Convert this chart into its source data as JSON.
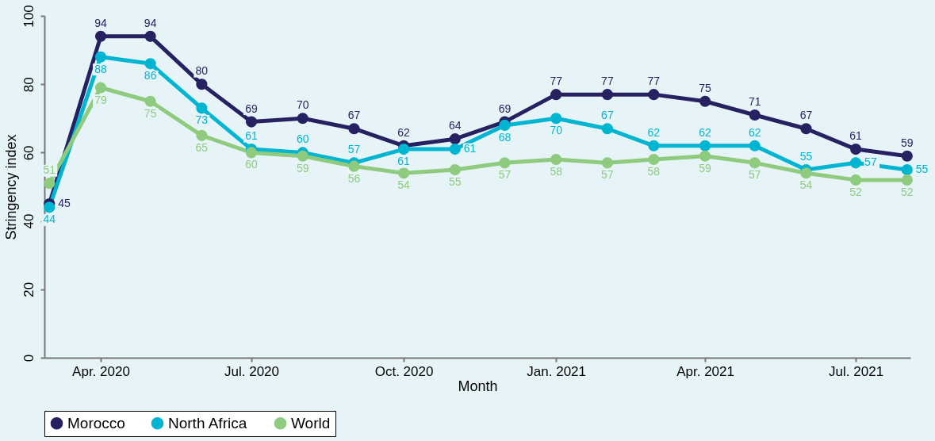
{
  "chart_data": {
    "type": "line",
    "xlabel": "Month",
    "ylabel": "Stringency index",
    "x": [
      "2020-03",
      "2020-04",
      "2020-05",
      "2020-06",
      "2020-07",
      "2020-08",
      "2020-09",
      "2020-10",
      "2020-11",
      "2020-12",
      "2021-01",
      "2021-02",
      "2021-03",
      "2021-04",
      "2021-05",
      "2021-06",
      "2021-07",
      "2021-08"
    ],
    "series": [
      {
        "name": "Morocco",
        "color": "#262262",
        "values": [
          45,
          94,
          94,
          80,
          69,
          70,
          67,
          62,
          64,
          69,
          77,
          77,
          77,
          75,
          71,
          67,
          61,
          59
        ]
      },
      {
        "name": "North Africa",
        "color": "#00b5d1",
        "values": [
          44,
          88,
          86,
          73,
          61,
          60,
          57,
          61,
          61,
          68,
          70,
          67,
          62,
          62,
          62,
          55,
          57,
          55
        ]
      },
      {
        "name": "World",
        "color": "#8fcb7f",
        "values": [
          51,
          79,
          75,
          65,
          60,
          59,
          56,
          54,
          55,
          57,
          58,
          57,
          58,
          59,
          57,
          54,
          52,
          52
        ]
      }
    ],
    "xlim": [
      "2020-02-27",
      "2021-08-03"
    ],
    "xticks": [
      {
        "value": "2020-04",
        "label": "Apr. 2020"
      },
      {
        "value": "2020-07",
        "label": "Jul. 2020"
      },
      {
        "value": "2020-10",
        "label": "Oct. 2020"
      },
      {
        "value": "2021-01",
        "label": "Jan. 2021"
      },
      {
        "value": "2021-04",
        "label": "Apr. 2021"
      },
      {
        "value": "2021-07",
        "label": "Jul. 2021"
      }
    ],
    "ylim": [
      0,
      100
    ],
    "yticks": [
      0,
      20,
      40,
      60,
      80,
      100
    ],
    "grid": false,
    "legend": "bottom",
    "marker": "circle",
    "line_style": "solid",
    "data_labels": true
  }
}
